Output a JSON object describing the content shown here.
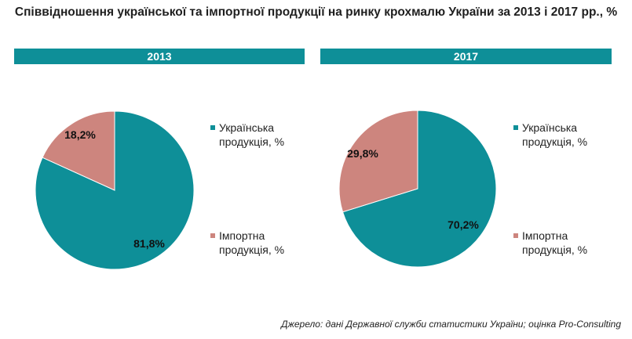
{
  "title": "Співвідношення української та імпортної продукції на ринку крохмалю України за 2013 і 2017 рр., %",
  "colors": {
    "ukrainian": "#0e8f98",
    "import": "#cd857e",
    "banner": "#0e8f98"
  },
  "chart_data": [
    {
      "type": "pie",
      "title": "2013",
      "slices": [
        {
          "name": "Українська продукція, %",
          "value": 81.8,
          "label": "81,8%"
        },
        {
          "name": "Імпортна продукція, %",
          "value": 18.2,
          "label": "18,2%"
        }
      ],
      "legend_placement": "right"
    },
    {
      "type": "pie",
      "title": "2017",
      "slices": [
        {
          "name": "Українська продукція, %",
          "value": 70.2,
          "label": "70,2%"
        },
        {
          "name": "Імпортна продукція, %",
          "value": 29.8,
          "label": "29,8%"
        }
      ],
      "legend_placement": "right"
    }
  ],
  "legend": {
    "ukrainian_line1": "Українська",
    "ukrainian_line2": "продукція, %",
    "import_line1": "Імпортна",
    "import_line2": "продукція, %"
  },
  "source": "Джерело: дані Державної служби статистики України; оцінка Pro-Consulting"
}
